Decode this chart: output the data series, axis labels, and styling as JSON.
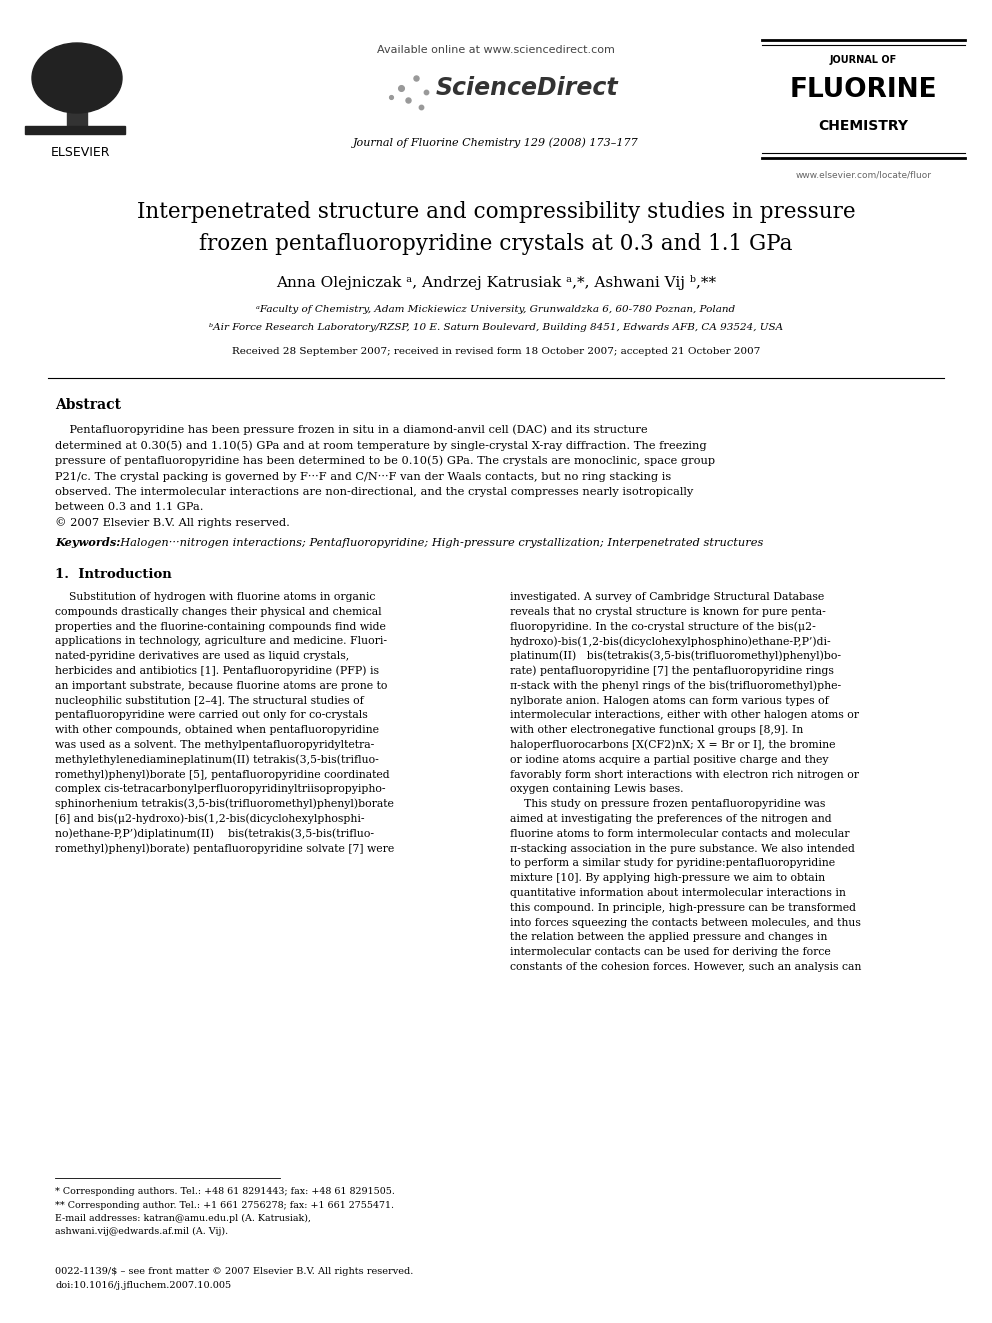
{
  "bg_color": "#ffffff",
  "page_width": 9.92,
  "page_height": 13.23,
  "available_online": "Available online at www.sciencedirect.com",
  "journal_line": "Journal of Fluorine Chemistry 129 (2008) 173–177",
  "website": "www.elsevier.com/locate/fluor",
  "title_line1": "Interpenetrated structure and compressibility studies in pressure",
  "title_line2": "frozen pentafluoropyridine crystals at 0.3 and 1.1 GPa",
  "author_line": "Anna Olejniczak a, Andrzej Katrusiak a,*, Ashwani Vij b,**",
  "affil_a": "ᵃFaculty of Chemistry, Adam Mickiewicz University, Grunwaldzka 6, 60-780 Poznan, Poland",
  "affil_b": "ᵇAir Force Research Laboratory/RZSP, 10 E. Saturn Boulevard, Building 8451, Edwards AFB, CA 93524, USA",
  "received": "Received 28 September 2007; received in revised form 18 October 2007; accepted 21 October 2007",
  "abstract_title": "Abstract",
  "abstract_body": "Pentafluoropyridine has been pressure frozen in situ in a diamond-anvil cell (DAC) and its structure determined at 0.30(5) and 1.10(5) GPa and at room temperature by single-crystal X-ray diffraction. The freezing pressure of pentafluoropyridine has been determined to be 0.10(5) GPa. The crystals are monoclinic, space group P21/c. The crystal packing is governed by F···F and C/N···F van der Waals contacts, but no ring stacking is observed. The intermolecular interactions are non-directional, and the crystal compresses nearly isotropically between 0.3 and 1.1 GPa.\n© 2007 Elsevier B.V. All rights reserved.",
  "keywords_label": "Keywords:",
  "keywords_text": "  Halogen···nitrogen interactions; Pentafluoropyridine; High-pressure crystallization; Interpenetrated structures",
  "sec1_title": "1.  Introduction",
  "col1_lines": [
    "    Substitution of hydrogen with fluorine atoms in organic",
    "compounds drastically changes their physical and chemical",
    "properties and the fluorine-containing compounds find wide",
    "applications in technology, agriculture and medicine. Fluori-",
    "nated-pyridine derivatives are used as liquid crystals,",
    "herbicides and antibiotics [1]. Pentafluoropyridine (PFP) is",
    "an important substrate, because fluorine atoms are prone to",
    "nucleophilic substitution [2–4]. The structural studies of",
    "pentafluoropyridine were carried out only for co-crystals",
    "with other compounds, obtained when pentafluoropyridine",
    "was used as a solvent. The methylpentafluoropyridyltetra-",
    "methylethylenediamineplatinum(II) tetrakis(3,5-bis(trifluo-",
    "romethyl)phenyl)borate [5], pentafluoropyridine coordinated",
    "complex cis-tetracarbonylperfluoropyridinyltriisopropyipho-",
    "sphinorhenium tetrakis(3,5-bis(trifluoromethyl)phenyl)borate",
    "[6] and bis(μ2-hydroxo)-bis(1,2-bis(dicyclohexylphosphi-",
    "no)ethane-P,P’)diplatinum(II)    bis(tetrakis(3,5-bis(trifluo-",
    "romethyl)phenyl)borate) pentafluoropyridine solvate [7] were"
  ],
  "col2_lines": [
    "investigated. A survey of Cambridge Structural Database",
    "reveals that no crystal structure is known for pure penta-",
    "fluoropyridine. In the co-crystal structure of the bis(μ2-",
    "hydroxo)-bis(1,2-bis(dicyclohexylphosphino)ethane-P,P’)di-",
    "platinum(II)   bis(tetrakis(3,5-bis(trifluoromethyl)phenyl)bo-",
    "rate) pentafluoropyridine [7] the pentafluoropyridine rings",
    "π-stack with the phenyl rings of the bis(trifluoromethyl)phe-",
    "nylborate anion. Halogen atoms can form various types of",
    "intermolecular interactions, either with other halogen atoms or",
    "with other electronegative functional groups [8,9]. In",
    "haloperfluorocarbons [X(CF2)nX; X = Br or I], the bromine",
    "or iodine atoms acquire a partial positive charge and they",
    "favorably form short interactions with electron rich nitrogen or",
    "oxygen containing Lewis bases.",
    "    This study on pressure frozen pentafluoropyridine was",
    "aimed at investigating the preferences of the nitrogen and",
    "fluorine atoms to form intermolecular contacts and molecular",
    "π-stacking association in the pure substance. We also intended",
    "to perform a similar study for pyridine:pentafluoropyridine",
    "mixture [10]. By applying high-pressure we aim to obtain",
    "quantitative information about intermolecular interactions in",
    "this compound. In principle, high-pressure can be transformed",
    "into forces squeezing the contacts between molecules, and thus",
    "the relation between the applied pressure and changes in",
    "intermolecular contacts can be used for deriving the force",
    "constants of the cohesion forces. However, such an analysis can"
  ],
  "fn1": "* Corresponding authors. Tel.: +48 61 8291443; fax: +48 61 8291505.",
  "fn2": "** Corresponding author. Tel.: +1 661 2756278; fax: +1 661 2755471.",
  "fn3": "E-mail addresses: katran@amu.edu.pl (A. Katrusiak),",
  "fn4": "ashwani.vij@edwards.af.mil (A. Vij).",
  "bottom1": "0022-1139/$ – see front matter © 2007 Elsevier B.V. All rights reserved.",
  "bottom2": "doi:10.1016/j.jfluchem.2007.10.005"
}
